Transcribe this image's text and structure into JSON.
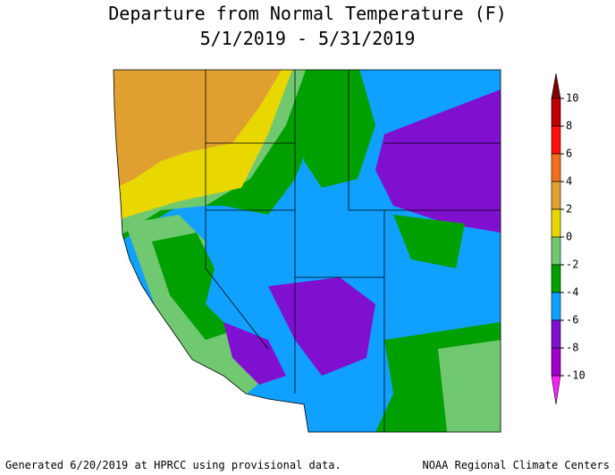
{
  "title": [
    "Departure from Normal Temperature (F)",
    "5/1/2019 - 5/31/2019"
  ],
  "legend": {
    "ticks": [
      10,
      8,
      6,
      4,
      2,
      0,
      -2,
      -4,
      -6,
      -8,
      -10
    ],
    "colors": [
      "#c00000",
      "#ff1010",
      "#f07020",
      "#e0a030",
      "#e8d800",
      "#70c870",
      "#00a000",
      "#10a0ff",
      "#8010d0",
      "#a000c8"
    ],
    "over_color": "#800000",
    "under_color": "#ff20ff"
  },
  "footer": {
    "left": "Generated 6/20/2019 at HPRCC using provisional data.",
    "right": "NOAA Regional Climate Centers"
  }
}
